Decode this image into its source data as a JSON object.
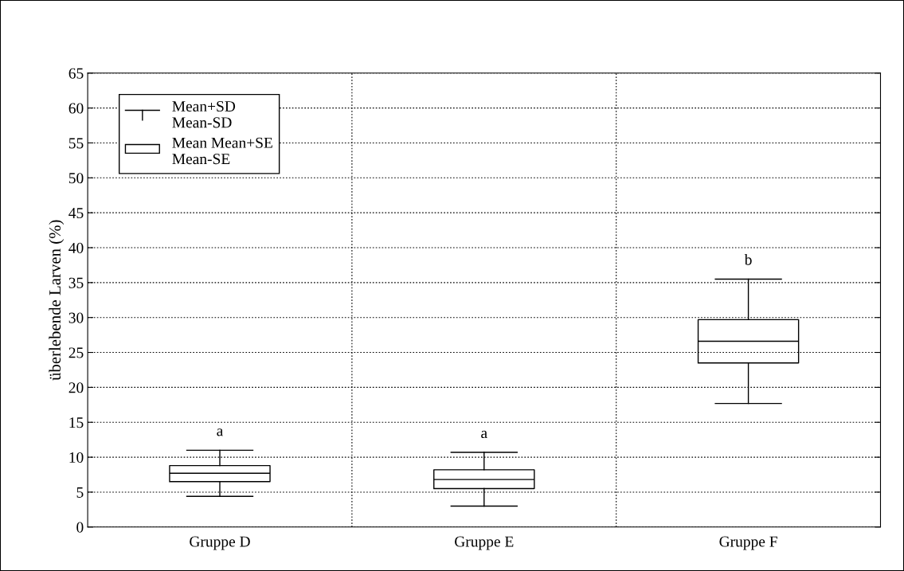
{
  "chart_data": {
    "type": "box",
    "ylabel": "überlebende Larven (%)",
    "categories": [
      "Gruppe D",
      "Gruppe E",
      "Gruppe F"
    ],
    "boxes": [
      {
        "low": 4.4,
        "q1": 6.5,
        "median": 7.7,
        "q3": 8.8,
        "high": 11.0
      },
      {
        "low": 3.0,
        "q1": 5.5,
        "median": 6.8,
        "q3": 8.2,
        "high": 10.7
      },
      {
        "low": 17.7,
        "q1": 23.5,
        "median": 26.6,
        "q3": 29.7,
        "high": 35.5
      }
    ],
    "ylim": [
      0,
      65
    ],
    "yticks": [
      0,
      5,
      10,
      15,
      20,
      25,
      30,
      35,
      40,
      45,
      50,
      55,
      60,
      65
    ],
    "grid": true,
    "annotations": [
      "Mean+SD\nMean-SD",
      "Mean Mean+SE\nMean-SE",
      {
        "text": "a",
        "x": "Gruppe D",
        "y": 11.0
      },
      {
        "text": "a",
        "x": "Gruppe E",
        "y": 10.7
      },
      {
        "text": "b",
        "x": "Gruppe F",
        "y": 35.5
      }
    ]
  }
}
